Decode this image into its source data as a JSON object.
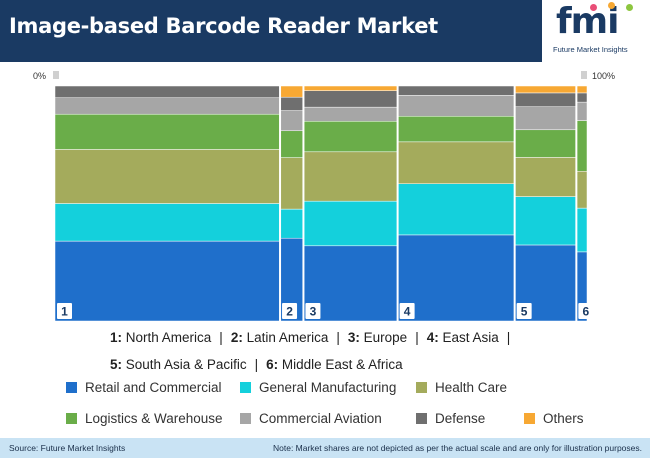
{
  "header": {
    "title": "Image-based Barcode Reader Market",
    "logo_text": "fmi",
    "logo_subtitle": "Future Market Insights"
  },
  "colors": {
    "header_bg": "#1a3a63",
    "footer_bg": "#c9e3f4"
  },
  "chart_data": {
    "type": "marimekko",
    "axis_left_label": "0%",
    "axis_right_label": "100%",
    "series": [
      {
        "name": "Retail and Commercial",
        "color": "#1f6fcb"
      },
      {
        "name": "General Manufacturing",
        "color": "#14d0dc"
      },
      {
        "name": "Health Care",
        "color": "#a4ab5c"
      },
      {
        "name": "Logistics & Warehouse",
        "color": "#6aad49"
      },
      {
        "name": "Commercial Aviation",
        "color": "#a6a6a6"
      },
      {
        "name": "Defense",
        "color": "#6f6f6f"
      },
      {
        "name": "Others",
        "color": "#f7a833"
      }
    ],
    "regions": [
      {
        "num": "1",
        "name": "North America",
        "width_pct": 42.3,
        "shares": [
          34,
          16,
          23,
          15,
          7,
          5,
          0
        ]
      },
      {
        "name": "Latin America",
        "num": "2",
        "width_pct": 4.4,
        "shares": [
          37,
          13,
          23,
          12,
          9,
          6,
          5
        ]
      },
      {
        "name": "Europe",
        "num": "3",
        "width_pct": 17.7,
        "shares": [
          32,
          19,
          21,
          13,
          6,
          7,
          2
        ]
      },
      {
        "name": "East Asia",
        "num": "4",
        "width_pct": 22.0,
        "shares": [
          37,
          22,
          18,
          11,
          9,
          4,
          0
        ]
      },
      {
        "name": "South Asia & Pacific",
        "num": "5",
        "width_pct": 11.6,
        "shares": [
          33,
          21,
          17,
          12,
          10,
          6,
          3
        ]
      },
      {
        "name": "Middle East & Africa",
        "num": "6",
        "width_pct": 2.0,
        "shares": [
          30,
          19,
          16,
          22,
          8,
          4,
          3
        ]
      }
    ]
  },
  "legend_regions_line1": [
    {
      "num": "1:",
      "name": "North America"
    },
    {
      "num": "2:",
      "name": "Latin America"
    },
    {
      "num": "3:",
      "name": "Europe"
    },
    {
      "num": "4:",
      "name": "East Asia"
    }
  ],
  "legend_regions_line2": [
    {
      "num": "5:",
      "name": "South Asia & Pacific"
    },
    {
      "num": "6:",
      "name": "Middle East & Africa"
    }
  ],
  "footer": {
    "source": "Source: Future Market Insights",
    "note": "Note: Market shares are not depicted as per the actual scale and are only for illustration purposes."
  }
}
